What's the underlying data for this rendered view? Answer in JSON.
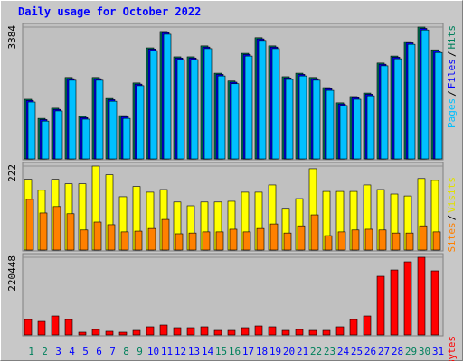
{
  "chart_data": [
    {
      "type": "bar",
      "title": "Daily usage for October 2022",
      "categories": [
        "1",
        "2",
        "3",
        "4",
        "5",
        "6",
        "7",
        "8",
        "9",
        "10",
        "11",
        "12",
        "13",
        "14",
        "15",
        "16",
        "17",
        "18",
        "19",
        "20",
        "21",
        "22",
        "23",
        "24",
        "25",
        "26",
        "27",
        "28",
        "29",
        "30",
        "31"
      ],
      "category_colors": [
        "#00805c",
        "#00805c",
        "#0000ff",
        "#0000ff",
        "#0000ff",
        "#0000ff",
        "#0000ff",
        "#00805c",
        "#00805c",
        "#0000ff",
        "#0000ff",
        "#0000ff",
        "#0000ff",
        "#0000ff",
        "#00805c",
        "#00805c",
        "#0000ff",
        "#0000ff",
        "#0000ff",
        "#0000ff",
        "#0000ff",
        "#00805c",
        "#00805c",
        "#0000ff",
        "#0000ff",
        "#0000ff",
        "#0000ff",
        "#0000ff",
        "#00805c",
        "#00805c",
        "#0000ff"
      ],
      "legend_separator": "/",
      "series": [
        {
          "name": "Hits",
          "color": "#00805c",
          "values": [
            1530,
            1040,
            1300,
            2090,
            1090,
            2090,
            1550,
            1110,
            1950,
            2850,
            3270,
            2620,
            2620,
            2900,
            2200,
            2000,
            2710,
            3110,
            2900,
            2110,
            2200,
            2090,
            1830,
            1440,
            1600,
            1690,
            2460,
            2640,
            3010,
            3384,
            2800
          ]
        },
        {
          "name": "Files",
          "color": "#0000ff",
          "values": [
            1500,
            1010,
            1270,
            2060,
            1060,
            2060,
            1520,
            1080,
            1920,
            2820,
            3240,
            2590,
            2590,
            2870,
            2170,
            1970,
            2680,
            3080,
            2870,
            2080,
            2170,
            2060,
            1800,
            1410,
            1570,
            1660,
            2430,
            2610,
            2980,
            3350,
            2770
          ]
        },
        {
          "name": "Pages",
          "color": "#00c0ff",
          "values": [
            1460,
            970,
            1230,
            2020,
            1020,
            2020,
            1480,
            1040,
            1880,
            2780,
            3200,
            2550,
            2550,
            2830,
            2130,
            1930,
            2640,
            3040,
            2830,
            2040,
            2130,
            2020,
            1760,
            1370,
            1530,
            1620,
            2390,
            2570,
            2940,
            3310,
            2730
          ]
        }
      ],
      "ylim": [
        0,
        3384
      ],
      "yticks": [
        3384
      ]
    },
    {
      "type": "bar",
      "legend_separator": "/",
      "series": [
        {
          "name": "Visits",
          "color": "#ffff00",
          "values": [
            187,
            158,
            187,
            175,
            175,
            222,
            199,
            141,
            168,
            153,
            160,
            127,
            117,
            127,
            127,
            129,
            153,
            153,
            172,
            108,
            136,
            215,
            155,
            155,
            155,
            172,
            160,
            148,
            143,
            189,
            184
          ]
        },
        {
          "name": "Sites",
          "color": "#ff8000",
          "values": [
            134,
            98,
            115,
            96,
            53,
            74,
            67,
            48,
            50,
            57,
            81,
            43,
            45,
            48,
            48,
            55,
            48,
            57,
            69,
            45,
            64,
            93,
            38,
            48,
            53,
            55,
            53,
            45,
            45,
            64,
            48
          ]
        }
      ],
      "ylim": [
        0,
        222
      ],
      "yticks": [
        222
      ]
    },
    {
      "type": "bar",
      "series": [
        {
          "name": "KBytes",
          "color": "#ff0000",
          "values": [
            43600,
            38400,
            53800,
            43600,
            7700,
            15400,
            10300,
            7700,
            12800,
            23100,
            28200,
            20500,
            20500,
            23100,
            12800,
            12800,
            20500,
            25600,
            23100,
            12800,
            15400,
            12800,
            12800,
            23100,
            43600,
            53800,
            166600,
            184500,
            207600,
            220448,
            182000
          ]
        }
      ],
      "ylim": [
        0,
        220448
      ],
      "yticks": [
        220448
      ]
    }
  ]
}
